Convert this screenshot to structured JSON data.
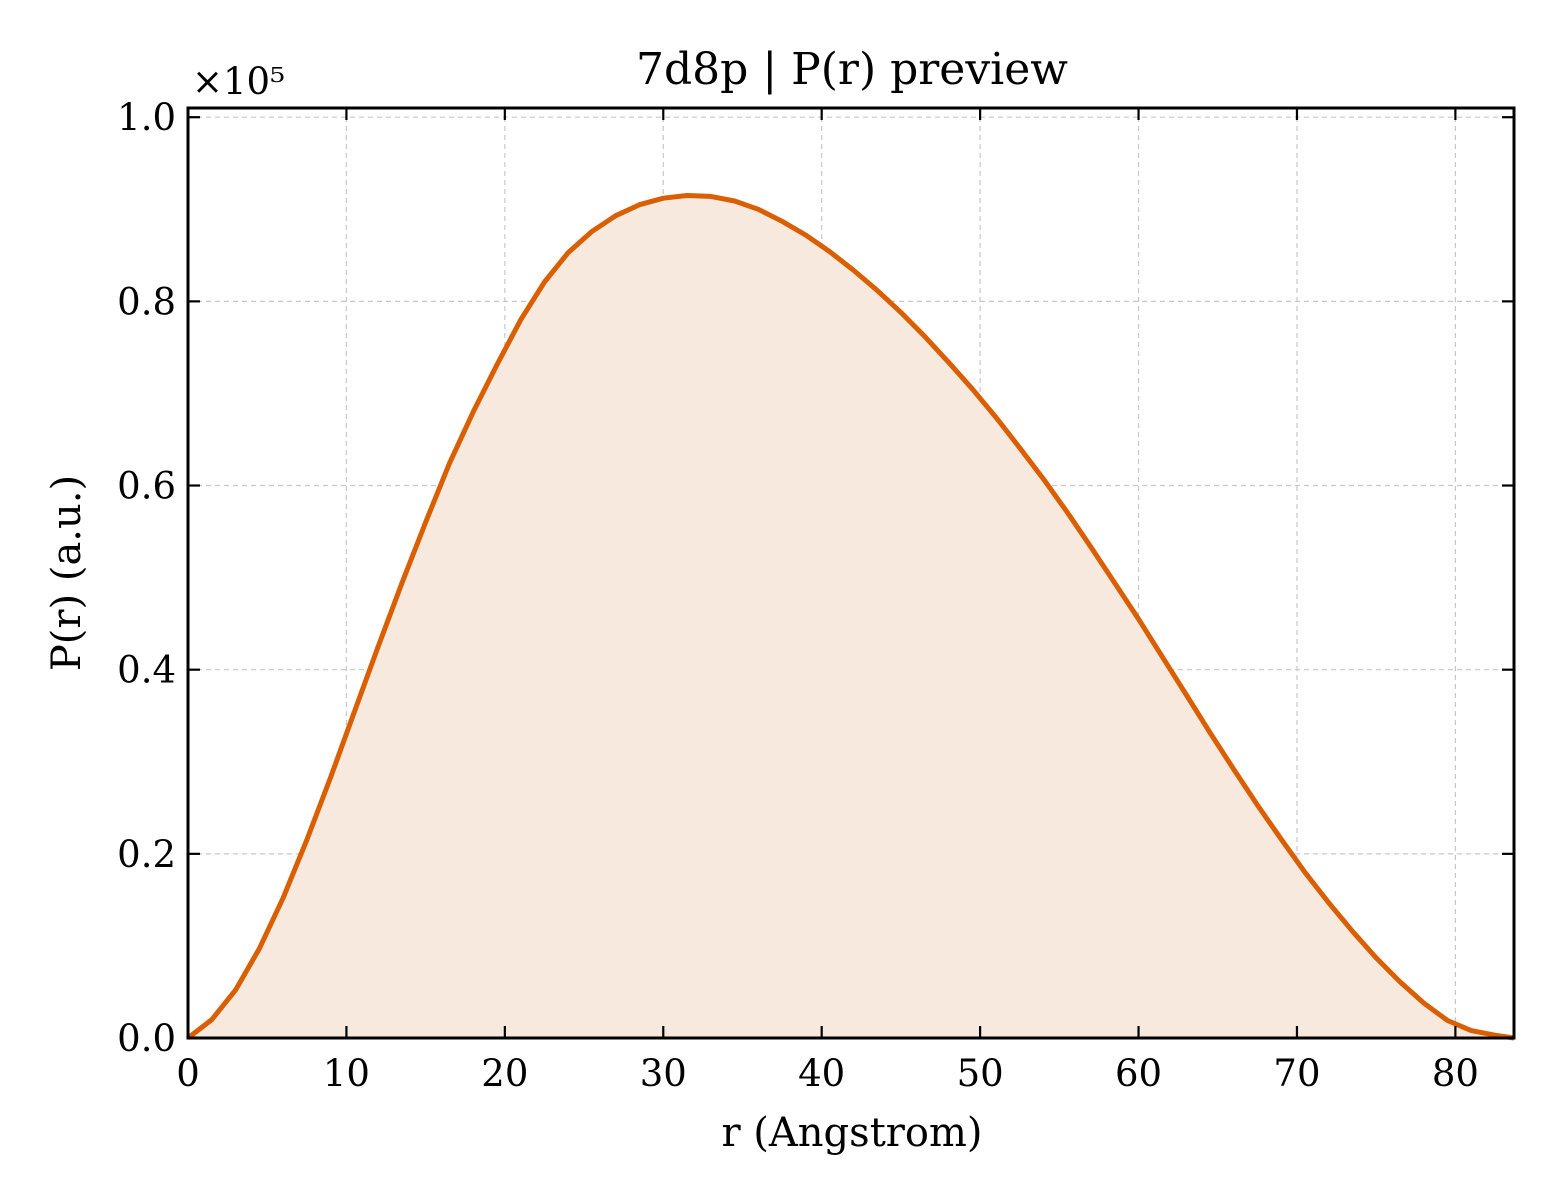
{
  "chart_data": {
    "type": "area",
    "title": "7d8p | P(r) preview",
    "xlabel": "r (Angstrom)",
    "ylabel": "P(r) (a.u.)",
    "y_offset_label": "×10⁵",
    "y_scale_factor": 100000,
    "xlim": [
      0,
      83.7
    ],
    "ylim": [
      0,
      1.01
    ],
    "xticks": [
      0,
      10,
      20,
      30,
      40,
      50,
      60,
      70,
      80
    ],
    "yticks": [
      0.0,
      0.2,
      0.4,
      0.6,
      0.8,
      1.0
    ],
    "xtick_labels": [
      "0",
      "10",
      "20",
      "30",
      "40",
      "50",
      "60",
      "70",
      "80"
    ],
    "ytick_labels": [
      "0.0",
      "0.2",
      "0.4",
      "0.6",
      "0.8",
      "1.0"
    ],
    "grid": true,
    "legend": "none",
    "series": [
      {
        "color": "#d95f02",
        "fill_color": "#f8e9df",
        "x": [
          0,
          1.5,
          3.0,
          4.5,
          6.0,
          7.5,
          9.0,
          10.5,
          12.0,
          13.5,
          15.0,
          16.5,
          18.0,
          19.5,
          21.0,
          22.5,
          24.0,
          25.5,
          27.0,
          28.5,
          30.0,
          31.5,
          33.0,
          34.5,
          36.0,
          37.5,
          39.0,
          40.5,
          42.0,
          43.5,
          45.0,
          46.5,
          48.0,
          49.5,
          51.0,
          52.5,
          54.0,
          55.5,
          57.0,
          58.5,
          60.0,
          61.5,
          63.0,
          64.5,
          66.0,
          67.5,
          69.0,
          70.5,
          72.0,
          73.5,
          75.0,
          76.5,
          78.0,
          79.5,
          81.0,
          82.5,
          83.7
        ],
        "y": [
          0.0,
          0.02,
          0.052,
          0.097,
          0.152,
          0.215,
          0.283,
          0.354,
          0.425,
          0.494,
          0.56,
          0.624,
          0.68,
          0.731,
          0.78,
          0.821,
          0.853,
          0.876,
          0.893,
          0.905,
          0.912,
          0.915,
          0.914,
          0.909,
          0.9,
          0.887,
          0.872,
          0.854,
          0.834,
          0.812,
          0.788,
          0.762,
          0.734,
          0.705,
          0.674,
          0.641,
          0.607,
          0.571,
          0.533,
          0.494,
          0.455,
          0.414,
          0.373,
          0.332,
          0.292,
          0.253,
          0.216,
          0.18,
          0.147,
          0.116,
          0.087,
          0.061,
          0.038,
          0.019,
          0.008,
          0.003,
          0.0
        ]
      }
    ]
  }
}
